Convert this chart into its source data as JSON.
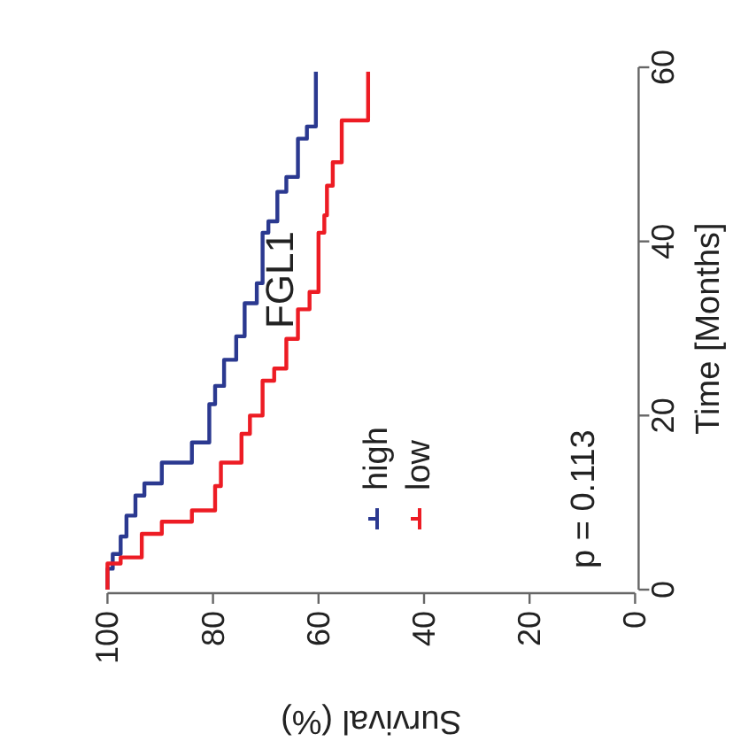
{
  "chart_data": {
    "type": "line",
    "title": "FGL1",
    "xlabel": "Survival (%)",
    "ylabel": "Time [Months]",
    "xlim": [
      100,
      0
    ],
    "xticks": [
      100,
      80,
      60,
      40,
      20,
      0
    ],
    "ylim": [
      0,
      60
    ],
    "yticks": [
      0,
      20,
      40,
      60
    ],
    "legend": "bottom",
    "annotations": [
      "p = 0.113"
    ],
    "series": [
      {
        "name": "high",
        "color": "#2b3990",
        "x": [
          100,
          100,
          99,
          99,
          97.5,
          97.5,
          96.4,
          96.4,
          94.7,
          94.7,
          93,
          93,
          89.7,
          89.7,
          84,
          84,
          80.7,
          80.7,
          79.6,
          79.6,
          77.9,
          77.9,
          75.6,
          75.6,
          74,
          74,
          71.7,
          71.7,
          70.6,
          70.6,
          69.5,
          69.5,
          67.8,
          67.8,
          66.1,
          66.1,
          63.9,
          63.9,
          62.2,
          62.2,
          60.5,
          60.5
        ],
        "values": [
          0,
          2.4,
          2.4,
          4.1,
          4.1,
          6.1,
          6.1,
          8.5,
          8.5,
          10.8,
          10.8,
          12.2,
          12.2,
          14.6,
          14.6,
          16.9,
          16.9,
          21.3,
          21.3,
          23.4,
          23.4,
          26.4,
          26.4,
          29.1,
          29.1,
          32.9,
          32.9,
          35.2,
          35.2,
          41,
          41,
          42.3,
          42.3,
          45.7,
          45.7,
          47.4,
          47.4,
          51.8,
          51.8,
          53.2,
          53.2,
          59.5
        ]
      },
      {
        "name": "low",
        "color": "#ed1c24",
        "x": [
          100,
          100,
          97.5,
          97.5,
          93.5,
          93.5,
          89.7,
          89.7,
          84,
          84,
          79.6,
          79.6,
          78.5,
          78.5,
          74.6,
          74.6,
          73,
          73,
          70.6,
          70.6,
          68.4,
          68.4,
          66.1,
          66.1,
          63.9,
          63.9,
          61.7,
          61.7,
          60,
          60,
          58.9,
          58.9,
          58.4,
          58.4,
          57.3,
          57.3,
          55.6,
          55.6,
          50.6,
          50.6
        ],
        "values": [
          0,
          3,
          3,
          3.7,
          3.7,
          6.4,
          6.4,
          7.8,
          7.8,
          9.1,
          9.1,
          11.9,
          11.9,
          14.6,
          14.6,
          17.9,
          17.9,
          20,
          20,
          24,
          24,
          25.4,
          25.4,
          28.8,
          28.8,
          32.2,
          32.2,
          34.2,
          34.2,
          41,
          41,
          43,
          43,
          46.4,
          46.4,
          49.1,
          49.1,
          53.9,
          53.9,
          59.5
        ]
      }
    ]
  }
}
